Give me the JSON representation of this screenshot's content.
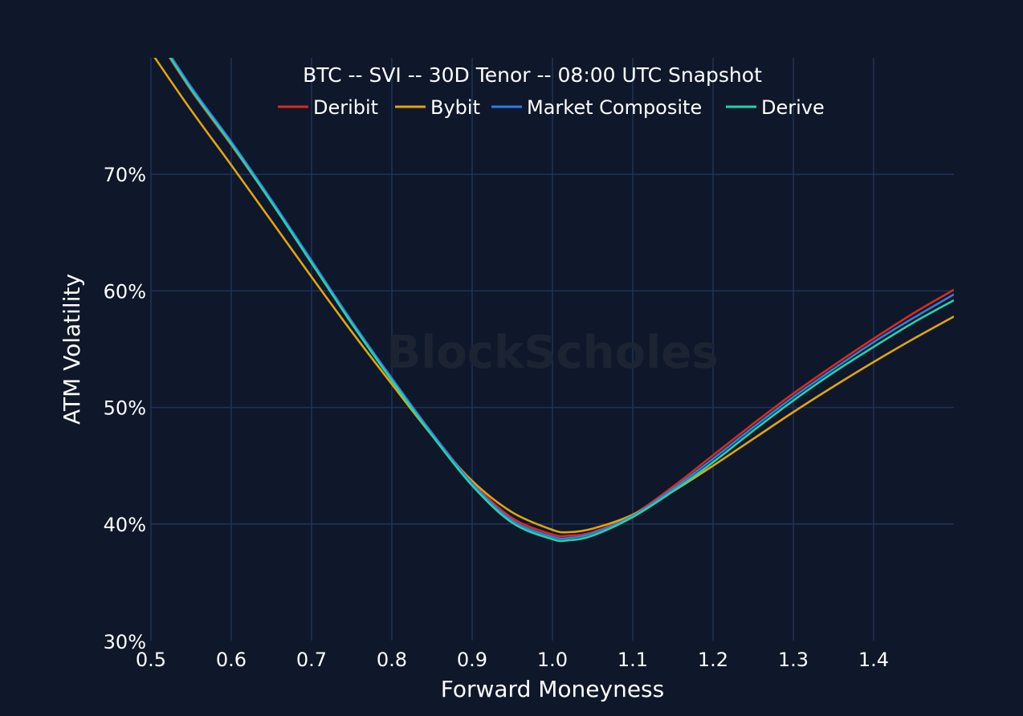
{
  "chart_data": {
    "type": "line",
    "title": "BTC -- SVI -- 30D Tenor -- 08:00 UTC Snapshot",
    "xlabel": "Forward Moneyness",
    "ylabel": "ATM Volatility",
    "watermark": "BlockScholes",
    "xlim": [
      0.5,
      1.5
    ],
    "ylim": [
      30,
      80
    ],
    "x_ticks": [
      0.5,
      0.6,
      0.7,
      0.8,
      0.9,
      1.0,
      1.1,
      1.2,
      1.3,
      1.4
    ],
    "x_tick_labels": [
      "0.5",
      "0.6",
      "0.7",
      "0.8",
      "0.9",
      "1.0",
      "1.1",
      "1.2",
      "1.3",
      "1.4"
    ],
    "y_ticks": [
      30,
      40,
      50,
      60,
      70
    ],
    "y_tick_labels": [
      "30%",
      "40%",
      "50%",
      "60%",
      "70%"
    ],
    "grid": true,
    "legend_position": "top-center",
    "x": [
      0.5,
      0.55,
      0.6,
      0.65,
      0.7,
      0.75,
      0.8,
      0.85,
      0.9,
      0.95,
      1.0,
      1.02,
      1.05,
      1.1,
      1.15,
      1.2,
      1.25,
      1.3,
      1.35,
      1.4,
      1.45,
      1.5
    ],
    "series": [
      {
        "name": "Deribit",
        "color": "#d62c1e",
        "values": [
          82.5,
          77.2,
          72.5,
          67.6,
          62.4,
          57.3,
          52.5,
          47.8,
          43.6,
          40.5,
          39.1,
          39.0,
          39.3,
          40.8,
          43.2,
          45.9,
          48.6,
          51.2,
          53.6,
          55.9,
          58.1,
          60.1
        ]
      },
      {
        "name": "Bybit",
        "color": "#e0a50e",
        "values": [
          80.5,
          75.5,
          70.8,
          66.0,
          61.2,
          56.5,
          52.0,
          47.6,
          43.7,
          41.0,
          39.5,
          39.3,
          39.6,
          40.8,
          42.8,
          45.0,
          47.3,
          49.6,
          51.8,
          53.9,
          55.9,
          57.8
        ]
      },
      {
        "name": "Market Composite",
        "color": "#2f7de1",
        "values": [
          82.8,
          77.5,
          72.8,
          67.8,
          62.6,
          57.4,
          52.5,
          47.8,
          43.5,
          40.3,
          38.9,
          38.8,
          39.2,
          40.7,
          43.0,
          45.6,
          48.3,
          50.9,
          53.3,
          55.6,
          57.7,
          59.7
        ]
      },
      {
        "name": "Derive",
        "color": "#25d3a8",
        "values": [
          82.6,
          77.3,
          72.6,
          67.6,
          62.4,
          57.2,
          52.3,
          47.6,
          43.3,
          40.1,
          38.7,
          38.6,
          39.0,
          40.6,
          42.8,
          45.3,
          48.0,
          50.6,
          53.0,
          55.2,
          57.3,
          59.2
        ]
      }
    ]
  }
}
